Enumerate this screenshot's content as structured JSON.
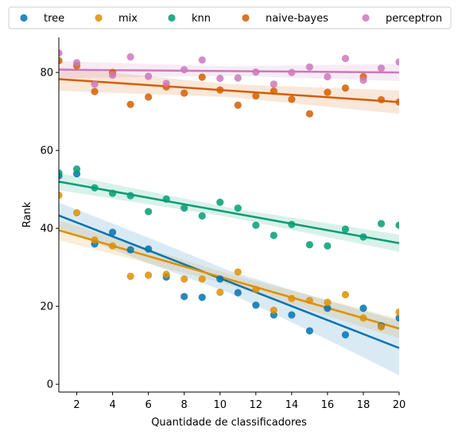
{
  "chart_data": {
    "type": "scatter",
    "xlabel": "Quantidade de classificadores",
    "ylabel": "Rank",
    "xlim": [
      1,
      20
    ],
    "ylim": [
      -2,
      89
    ],
    "xticks": [
      2,
      4,
      6,
      8,
      10,
      12,
      14,
      16,
      18,
      20
    ],
    "yticks": [
      0,
      20,
      40,
      60,
      80
    ],
    "grid": false,
    "legend_position": "top",
    "regression_lines": true,
    "confidence_bands": true,
    "series": [
      {
        "name": "tree",
        "color": "#0173b2",
        "x": [
          1,
          2,
          3,
          4,
          5,
          6,
          7,
          8,
          9,
          10,
          11,
          12,
          13,
          14,
          15,
          16,
          17,
          18,
          19,
          20
        ],
        "y": [
          53.5,
          54,
          36,
          39,
          34.5,
          34.7,
          27.5,
          22.5,
          22.3,
          27,
          23.5,
          20.3,
          17.8,
          17.8,
          13.7,
          19.5,
          12.7,
          19.5,
          15,
          17
        ],
        "fit": [
          43.3,
          9.3
        ],
        "band_width": [
          3.3,
          7
        ]
      },
      {
        "name": "mix",
        "color": "#de8f05",
        "x": [
          1,
          2,
          3,
          4,
          5,
          6,
          7,
          8,
          9,
          10,
          11,
          12,
          13,
          14,
          15,
          16,
          17,
          18,
          19,
          20
        ],
        "y": [
          48.5,
          44,
          37,
          35.5,
          27.7,
          28,
          28.2,
          27,
          27,
          23.6,
          28.8,
          24.3,
          19,
          22,
          21.5,
          21,
          23,
          17,
          14.7,
          18.5
        ],
        "fit": [
          39.5,
          14.3
        ],
        "band_width": [
          2.5,
          2.5
        ]
      },
      {
        "name": "knn",
        "color": "#029e73",
        "x": [
          1,
          2,
          3,
          4,
          5,
          6,
          7,
          8,
          9,
          10,
          11,
          12,
          13,
          14,
          15,
          16,
          17,
          18,
          19,
          20
        ],
        "y": [
          54.2,
          55.2,
          50.4,
          49,
          48.4,
          44.3,
          47.5,
          45.2,
          43.2,
          46.7,
          45.2,
          40.8,
          38.2,
          41,
          35.8,
          35.5,
          39.8,
          37.8,
          41.2,
          40.8
        ],
        "fit": [
          52,
          36.2
        ],
        "band_width": [
          2.2,
          2.2
        ]
      },
      {
        "name": "naive-bayes",
        "color": "#d55e00",
        "x": [
          1,
          2,
          3,
          4,
          5,
          6,
          7,
          8,
          9,
          10,
          11,
          12,
          13,
          14,
          15,
          16,
          17,
          18,
          19,
          20
        ],
        "y": [
          83,
          81.7,
          75.1,
          80,
          71.8,
          73.7,
          76.3,
          74.7,
          78.8,
          75.5,
          71.6,
          74,
          75.2,
          73.1,
          69.4,
          74.9,
          76,
          78.9,
          73,
          72.4
        ],
        "fit": [
          78.3,
          72.4
        ],
        "band_width": [
          3,
          3
        ]
      },
      {
        "name": "perceptron",
        "color": "#cc78bc",
        "x": [
          1,
          2,
          3,
          4,
          5,
          6,
          7,
          8,
          9,
          10,
          11,
          12,
          13,
          14,
          15,
          16,
          17,
          18,
          19,
          20
        ],
        "y": [
          85,
          82.5,
          77,
          79.3,
          84,
          79,
          77.2,
          80.7,
          83.2,
          78.5,
          78.6,
          80.1,
          77,
          80,
          81.4,
          78.9,
          83.6,
          78,
          81.1,
          82.7
        ],
        "fit": [
          80.7,
          80
        ],
        "band_width": [
          2.2,
          2.2
        ]
      }
    ]
  }
}
